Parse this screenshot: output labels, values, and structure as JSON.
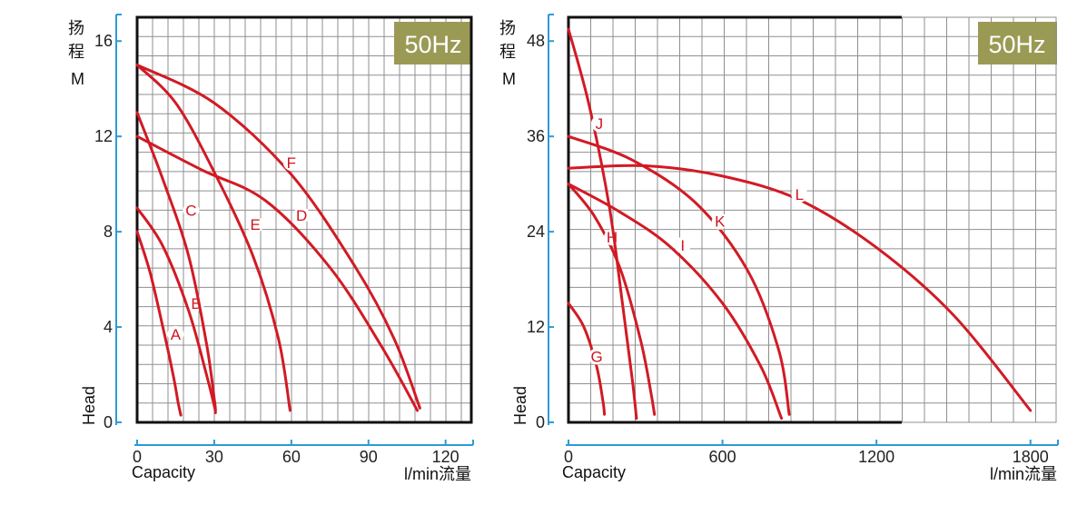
{
  "colors": {
    "curve": "#d21a24",
    "grid": "#8f8f8f",
    "axis": "#2d9bd6",
    "frame": "#111111",
    "badge": "#9a9a55"
  },
  "chart_data": [
    {
      "type": "line",
      "badge": "50Hz",
      "ylabel_cn": [
        "扬",
        "程"
      ],
      "ylabel_unit": "M",
      "ylabel_en": "Head",
      "xlabel_en": "Capacity",
      "xlabel_unit": "l/min流量",
      "xlim": [
        0,
        130
      ],
      "ylim": [
        0,
        17
      ],
      "xticks": [
        0,
        30,
        60,
        90,
        120
      ],
      "yticks": [
        0,
        4,
        8,
        12,
        16
      ],
      "grid": true,
      "series": [
        {
          "name": "A",
          "x": [
            0,
            5,
            10,
            14,
            16,
            17
          ],
          "y": [
            8,
            6.3,
            4,
            2,
            0.8,
            0.3
          ],
          "label_at": [
            15,
            3.7
          ]
        },
        {
          "name": "B",
          "x": [
            0,
            10,
            20,
            27,
            30,
            30.5
          ],
          "y": [
            9,
            7.4,
            4.7,
            2,
            0.7,
            0.4
          ],
          "label_at": [
            23,
            5.0
          ]
        },
        {
          "name": "C",
          "x": [
            0,
            10,
            20,
            27,
            30,
            30.5
          ],
          "y": [
            13,
            10.2,
            7,
            3.3,
            1,
            0.5
          ],
          "label_at": [
            21,
            8.9
          ]
        },
        {
          "name": "E",
          "x": [
            0,
            15,
            30,
            45,
            55,
            59.5
          ],
          "y": [
            15,
            13.4,
            10.5,
            7,
            3.5,
            0.5
          ],
          "label_at": [
            46,
            8.3
          ]
        },
        {
          "name": "D",
          "x": [
            0,
            25,
            50,
            75,
            95,
            109
          ],
          "y": [
            12,
            10.6,
            9.3,
            6.5,
            3.2,
            0.5
          ],
          "label_at": [
            64,
            8.7
          ]
        },
        {
          "name": "F",
          "x": [
            0,
            30,
            60,
            85,
            100,
            110
          ],
          "y": [
            15,
            13.4,
            10.4,
            6.5,
            3.5,
            0.6
          ],
          "label_at": [
            60,
            10.9
          ]
        }
      ]
    },
    {
      "type": "line",
      "badge": "50Hz",
      "ylabel_cn": [
        "扬",
        "程"
      ],
      "ylabel_unit": "M",
      "ylabel_en": "Head",
      "xlabel_en": "Capacity",
      "xlabel_unit": "l/min流量",
      "xlim": [
        0,
        1900
      ],
      "ylim": [
        0,
        51
      ],
      "xticks": [
        0,
        600,
        1200,
        1800
      ],
      "yticks": [
        0,
        12,
        24,
        36,
        48
      ],
      "grid": true,
      "series": [
        {
          "name": "G",
          "x": [
            0,
            60,
            110,
            135,
            140
          ],
          "y": [
            15,
            12,
            7,
            2.5,
            1
          ],
          "label_at": [
            110,
            8.3
          ]
        },
        {
          "name": "H",
          "x": [
            0,
            100,
            200,
            280,
            320,
            335
          ],
          "y": [
            30,
            26,
            19.5,
            10.5,
            4,
            1
          ],
          "label_at": [
            170,
            23.3
          ]
        },
        {
          "name": "J",
          "x": [
            0,
            80,
            160,
            210,
            250,
            265
          ],
          "y": [
            49.5,
            40,
            27,
            15,
            5,
            0.5
          ],
          "label_at": [
            120,
            37.6
          ]
        },
        {
          "name": "I",
          "x": [
            0,
            200,
            400,
            600,
            750,
            830
          ],
          "y": [
            30,
            26.5,
            22,
            15,
            7,
            0.5
          ],
          "label_at": [
            445,
            22.3
          ]
        },
        {
          "name": "K",
          "x": [
            0,
            250,
            500,
            700,
            820,
            860
          ],
          "y": [
            36,
            33,
            27.5,
            19,
            9,
            1
          ],
          "label_at": [
            590,
            25.3
          ]
        },
        {
          "name": "L",
          "x": [
            0,
            300,
            600,
            900,
            1200,
            1500,
            1800
          ],
          "y": [
            32,
            32.3,
            31,
            28,
            22,
            13.5,
            1.5
          ],
          "label_at": [
            900,
            28.7
          ]
        }
      ]
    }
  ]
}
